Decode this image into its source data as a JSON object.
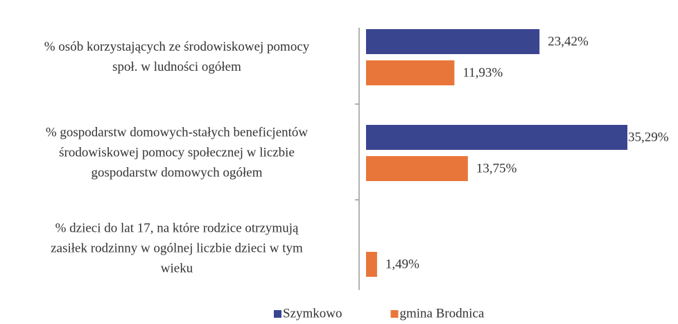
{
  "chart_data": {
    "type": "barh",
    "categories": [
      "% osób korzystających ze środowiskowej pomocy\nspoł. w ludności ogółem",
      "% gospodarstw domowych-stałych beneficjentów\nśrodowiskowej pomocy społecznej w liczbie\ngospodarstw domowych ogółem",
      "% dzieci do lat 17, na które rodzice otrzymują\nzasiłek rodzinny w ogólnej liczbie dzieci w tym\nwieku"
    ],
    "series": [
      {
        "name": "Szymkowo",
        "color": "#3a4590",
        "values": [
          23.42,
          35.29,
          null
        ],
        "value_labels": [
          "23,42%",
          "35,29%",
          null
        ]
      },
      {
        "name": "gmina Brodnica",
        "color": "#e8763a",
        "values": [
          11.93,
          13.75,
          1.49
        ],
        "value_labels": [
          "11,93%",
          "13,75%",
          "1,49%"
        ]
      }
    ],
    "legend": "bottom"
  }
}
